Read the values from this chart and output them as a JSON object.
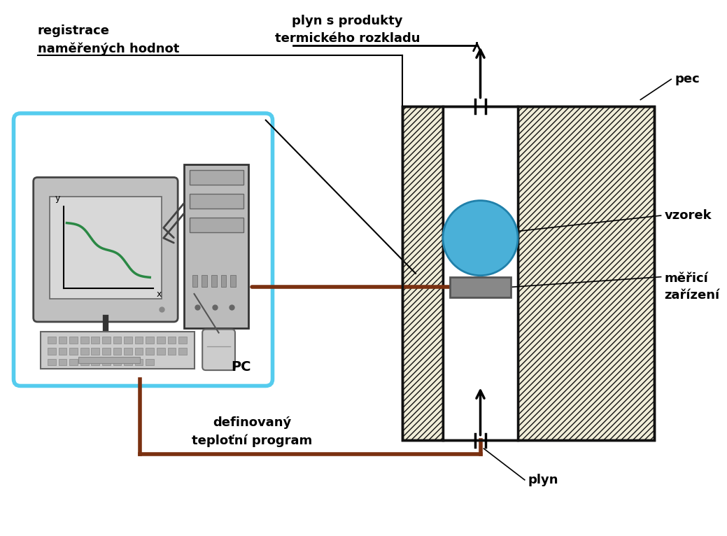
{
  "bg_color": "#ffffff",
  "furnace_color": "#f0edd8",
  "furnace_outline": "#111111",
  "sample_color": "#4ab0d8",
  "sample_edge": "#2080aa",
  "platform_color": "#888888",
  "platform_edge": "#555555",
  "pc_box_color": "#55ccee",
  "monitor_bg": "#c8c8c8",
  "monitor_screen": "#e5e5e5",
  "curve_color": "#2a8844",
  "tower_color": "#bbbbbb",
  "cable_color": "#333333",
  "signal_line_color": "#7a3010",
  "text_color": "#000000",
  "hatch": "////",
  "labels": {
    "plyn_produkty": "plyn s produkty\ntermického rozkladu",
    "pec": "pec",
    "vzorek": "vzorek",
    "merici": "měřicí\nzařízení",
    "plyn": "plyn",
    "registrace": "registrace\nnaměřených hodnot",
    "pc": "PC",
    "definovany": "definovaný\nteploťní program"
  }
}
